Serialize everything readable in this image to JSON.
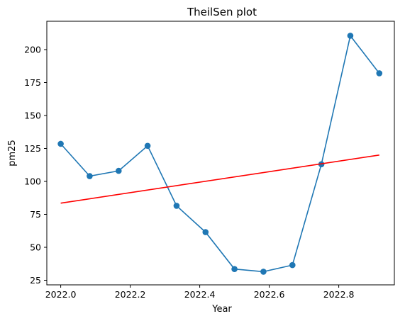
{
  "chart_data": {
    "type": "line",
    "title": "TheilSen plot",
    "xlabel": "Year",
    "ylabel": "pm25",
    "x": [
      2022.0,
      2022.0833,
      2022.1667,
      2022.25,
      2022.3333,
      2022.4167,
      2022.5,
      2022.5833,
      2022.6667,
      2022.75,
      2022.8333,
      2022.9167
    ],
    "series": [
      {
        "values": [
          128.5,
          104,
          108,
          127,
          81.5,
          61.5,
          33.5,
          31.5,
          36.5,
          113,
          210.5,
          182
        ],
        "color": "#1f77b4",
        "marker": "circle"
      },
      {
        "values": [
          83.5,
          120
        ],
        "x": [
          2022.0,
          2022.9167
        ],
        "color": "#ff0000",
        "marker": "none"
      }
    ],
    "xlim": [
      2021.96,
      2022.96
    ],
    "ylim": [
      21.5,
      221.5
    ],
    "xticks": [
      2022.0,
      2022.2,
      2022.4,
      2022.6,
      2022.8
    ],
    "xtick_labels": [
      "2022.0",
      "2022.2",
      "2022.4",
      "2022.6",
      "2022.8"
    ],
    "yticks": [
      25,
      50,
      75,
      100,
      125,
      150,
      175,
      200
    ],
    "ytick_labels": [
      "25",
      "50",
      "75",
      "100",
      "125",
      "150",
      "175",
      "200"
    ],
    "grid": false,
    "legend": "none"
  }
}
